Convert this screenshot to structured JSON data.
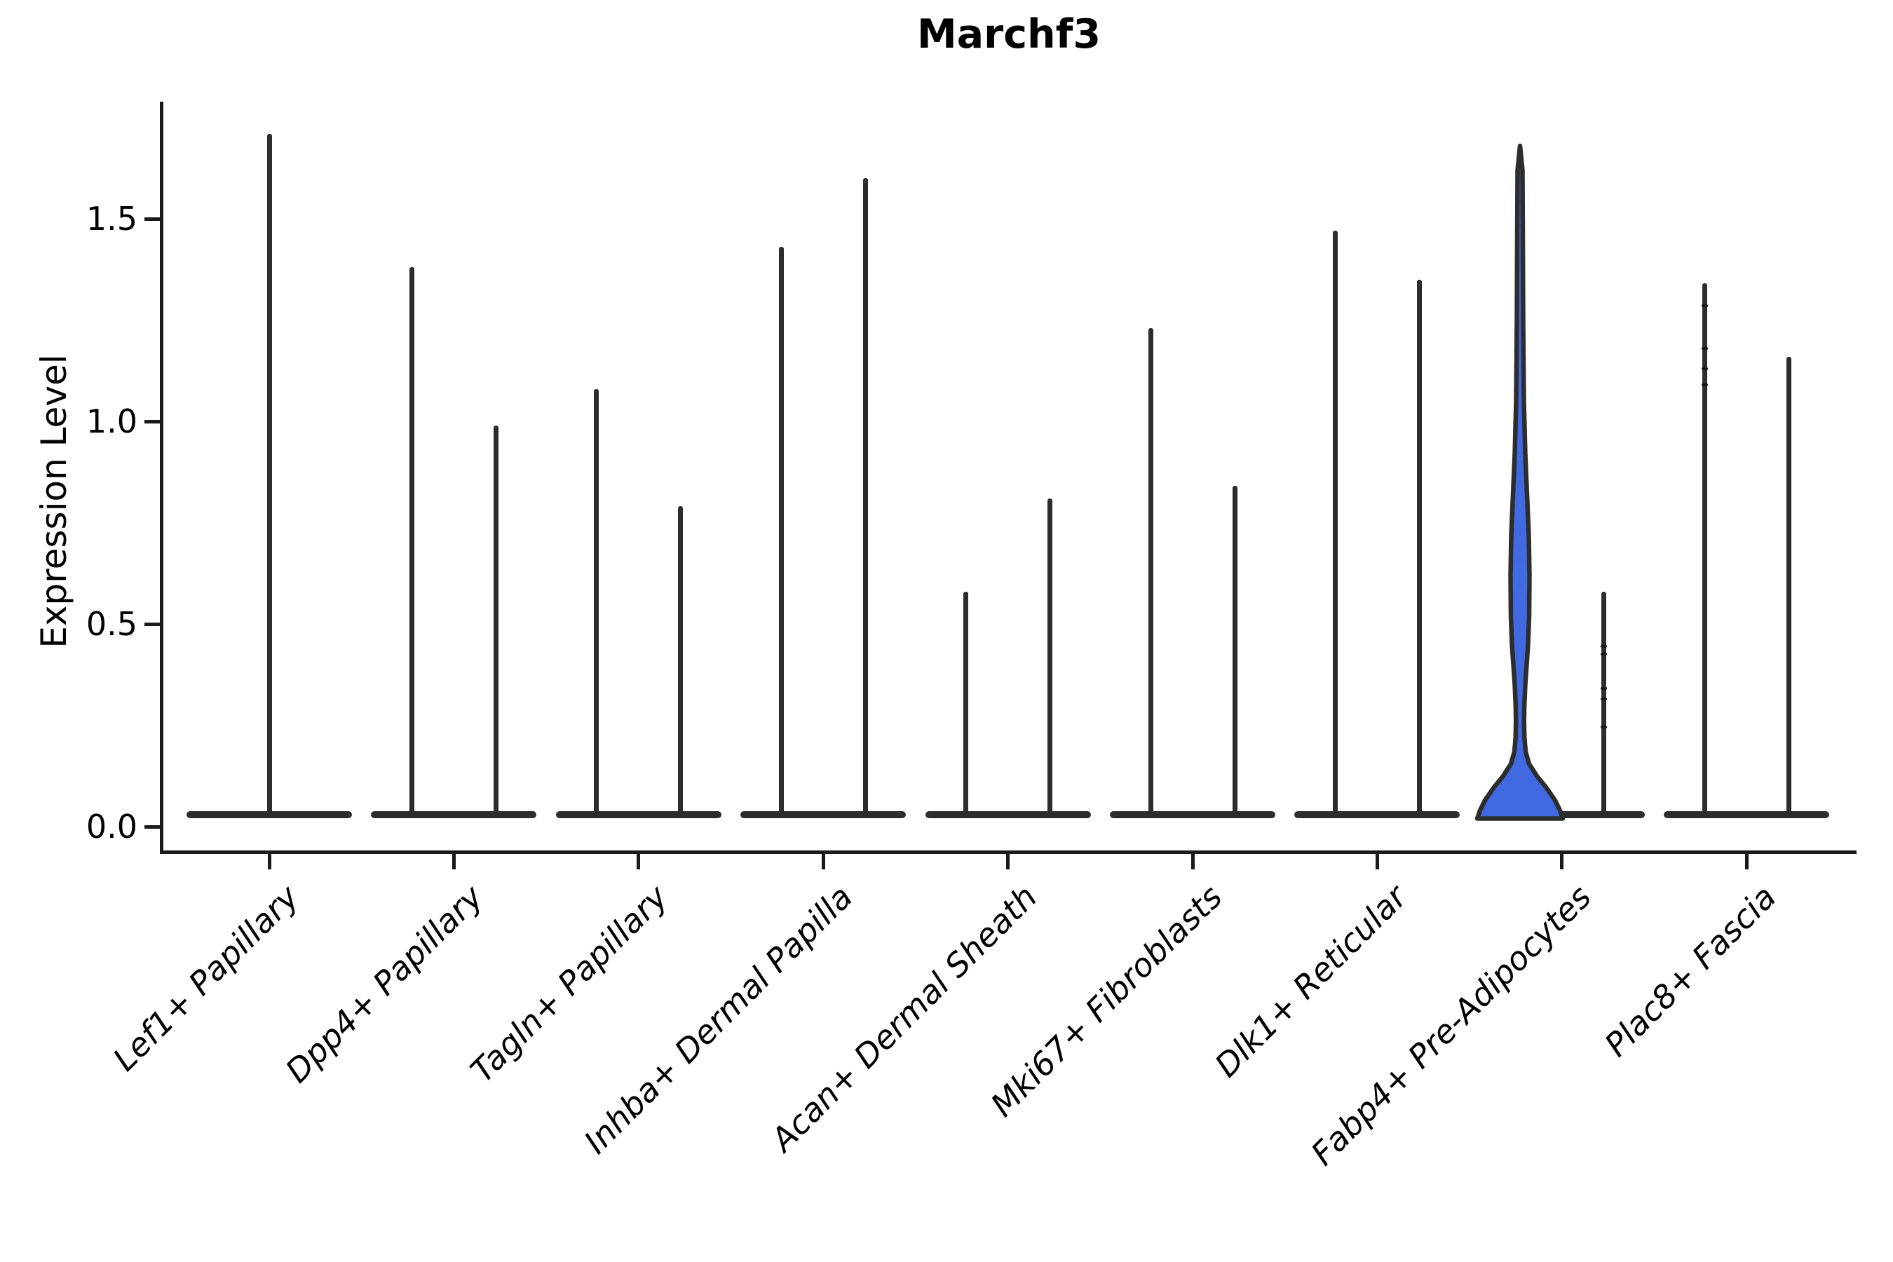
{
  "chart": {
    "title": "Marchf3",
    "y_axis": {
      "label": "Expression Level"
    },
    "x_axis": {
      "labels": [
        "Lef1+ Papillary",
        "Dpp4+ Papillary",
        "Tagln+ Papillary",
        "Inhba+ Dermal Papilla",
        "Acan+ Dermal Sheath",
        "Mki67+ Fibroblasts",
        "Dlk1+ Reticular",
        "Fabp4+ Pre-Adipocytes",
        "Plac8+ Fascia"
      ]
    }
  },
  "colors": {
    "background": "#ffffff",
    "violin_outline": "#2d2d2d",
    "axis": "#1a1a1a",
    "highlight_fill": "#4169E1",
    "text": "#000000"
  },
  "chart_data": {
    "type": "violin",
    "title": "Marchf3",
    "xlabel": "",
    "ylabel": "Expression Level",
    "ylim": [
      0,
      1.78
    ],
    "grid": false,
    "legend": "none",
    "y_ticks": [
      {
        "label": "0.0",
        "value": 0.0
      },
      {
        "label": "0.5",
        "value": 0.5
      },
      {
        "label": "1.0",
        "value": 1.0
      },
      {
        "label": "1.5",
        "value": 1.5
      }
    ],
    "note": "Violin plot of Marchf3 expression; nearly all distributions collapse to a flat base at 0 with a thin spike to the max value. Only the left (highlighted blue) violin of Fabp4+ Pre-Adipocytes shows visible density mass above 0.",
    "categories": [
      {
        "label": "Lef1+ Papillary",
        "violins": [
          {
            "pos": "center",
            "max": 1.71
          }
        ]
      },
      {
        "label": "Dpp4+ Papillary",
        "violins": [
          {
            "pos": "left",
            "max": 1.38
          },
          {
            "pos": "right",
            "max": 0.99
          }
        ]
      },
      {
        "label": "Tagln+ Papillary",
        "violins": [
          {
            "pos": "left",
            "max": 1.08
          },
          {
            "pos": "right",
            "max": 0.79
          }
        ]
      },
      {
        "label": "Inhba+ Dermal Papilla",
        "violins": [
          {
            "pos": "left",
            "max": 1.43
          },
          {
            "pos": "right",
            "max": 1.6
          }
        ]
      },
      {
        "label": "Acan+ Dermal Sheath",
        "violins": [
          {
            "pos": "left",
            "max": 0.58
          },
          {
            "pos": "right",
            "max": 0.81
          }
        ]
      },
      {
        "label": "Mki67+ Fibroblasts",
        "violins": [
          {
            "pos": "left",
            "max": 1.23
          },
          {
            "pos": "right",
            "max": 0.84
          }
        ]
      },
      {
        "label": "Dlk1+ Reticular",
        "violins": [
          {
            "pos": "left",
            "max": 1.47
          },
          {
            "pos": "right",
            "max": 1.35
          }
        ]
      },
      {
        "label": "Fabp4+ Pre-Adipocytes",
        "violins": [
          {
            "pos": "left",
            "max": 1.68,
            "highlighted": true,
            "fill": "#4169E1"
          },
          {
            "pos": "right",
            "max": 0.58,
            "dots": [
              0.445,
              0.425,
              0.34,
              0.315,
              0.245
            ]
          }
        ]
      },
      {
        "label": "Plac8+ Fascia",
        "violins": [
          {
            "pos": "left",
            "max": 1.34,
            "dots": [
              1.285,
              1.18,
              1.13,
              1.09
            ]
          },
          {
            "pos": "right",
            "max": 1.16
          }
        ]
      }
    ],
    "highlight_profile": [
      [
        1.68,
        0
      ],
      [
        1.62,
        3.5
      ],
      [
        1.45,
        4
      ],
      [
        1.25,
        4.5
      ],
      [
        1.05,
        5.5
      ],
      [
        0.92,
        7.5
      ],
      [
        0.82,
        10
      ],
      [
        0.72,
        12.5
      ],
      [
        0.62,
        13.5
      ],
      [
        0.52,
        13
      ],
      [
        0.45,
        11.5
      ],
      [
        0.4,
        9.5
      ],
      [
        0.35,
        7.5
      ],
      [
        0.3,
        6.2
      ],
      [
        0.26,
        5.8
      ],
      [
        0.22,
        6.3
      ],
      [
        0.185,
        8
      ],
      [
        0.155,
        13
      ],
      [
        0.125,
        24
      ],
      [
        0.095,
        38
      ],
      [
        0.065,
        50
      ],
      [
        0.04,
        57
      ],
      [
        0.02,
        61
      ]
    ]
  }
}
